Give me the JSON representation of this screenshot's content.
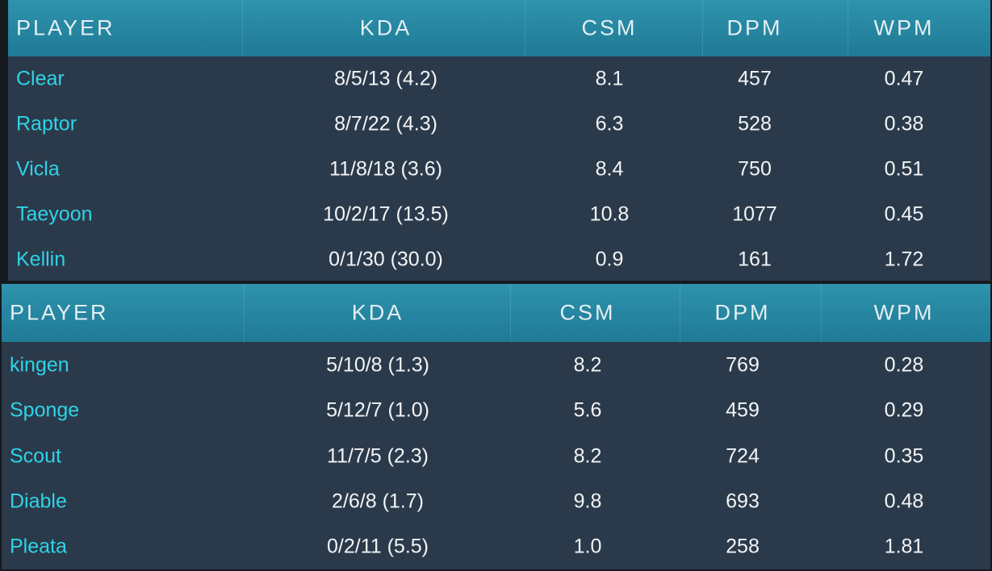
{
  "tables": [
    {
      "header": [
        "PLAYER",
        "KDA",
        "CSM",
        "DPM",
        "WPM"
      ],
      "rows": [
        [
          "Clear",
          "8/5/13 (4.2)",
          "8.1",
          "457",
          "0.47"
        ],
        [
          "Raptor",
          "8/7/22 (4.3)",
          "6.3",
          "528",
          "0.38"
        ],
        [
          "Vicla",
          "11/8/18 (3.6)",
          "8.4",
          "750",
          "0.51"
        ],
        [
          "Taeyoon",
          "10/2/17 (13.5)",
          "10.8",
          "1077",
          "0.45"
        ],
        [
          "Kellin",
          "0/1/30 (30.0)",
          "0.9",
          "161",
          "1.72"
        ]
      ]
    },
    {
      "header": [
        "PLAYER",
        "KDA",
        "CSM",
        "DPM",
        "WPM"
      ],
      "rows": [
        [
          "kingen",
          "5/10/8 (1.3)",
          "8.2",
          "769",
          "0.28"
        ],
        [
          "Sponge",
          "5/12/7 (1.0)",
          "5.6",
          "459",
          "0.29"
        ],
        [
          "Scout",
          "11/7/5 (2.3)",
          "8.2",
          "724",
          "0.35"
        ],
        [
          "Diable",
          "2/6/8 (1.7)",
          "9.8",
          "693",
          "0.48"
        ],
        [
          "Pleata",
          "0/2/11 (5.5)",
          "1.0",
          "258",
          "1.81"
        ]
      ]
    }
  ]
}
